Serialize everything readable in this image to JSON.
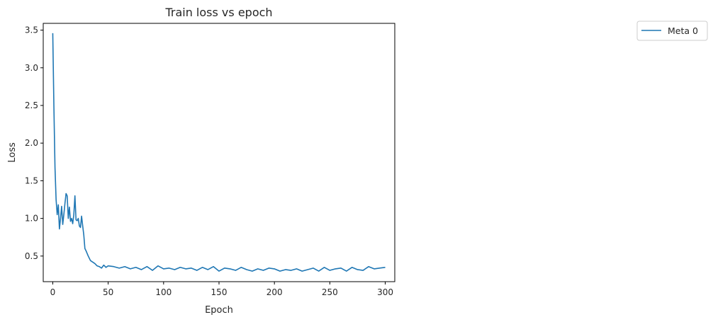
{
  "chart_data": {
    "type": "line",
    "title": "Train loss vs epoch",
    "xlabel": "Epoch",
    "ylabel": "Loss",
    "xlim": [
      -8.6,
      308.6
    ],
    "ylim": [
      0.16,
      3.59
    ],
    "xticks": [
      0,
      50,
      100,
      150,
      200,
      250,
      300
    ],
    "yticks": [
      0.5,
      1.0,
      1.5,
      2.0,
      2.5,
      3.0,
      3.5
    ],
    "xtick_labels": [
      "0",
      "50",
      "100",
      "150",
      "200",
      "250",
      "300"
    ],
    "ytick_labels": [
      "0.5",
      "1.0",
      "1.5",
      "2.0",
      "2.5",
      "3.0",
      "3.5"
    ],
    "grid": false,
    "legend_position": "outside-right-top",
    "series": [
      {
        "name": "Meta 0",
        "color": "#1f77b4",
        "x": [
          0,
          1,
          2,
          3,
          4,
          5,
          6,
          7,
          8,
          9,
          10,
          11,
          12,
          13,
          14,
          15,
          16,
          17,
          18,
          19,
          20,
          21,
          22,
          23,
          24,
          25,
          26,
          27,
          28,
          29,
          30,
          32,
          34,
          36,
          38,
          40,
          42,
          44,
          46,
          48,
          50,
          55,
          60,
          65,
          70,
          75,
          80,
          85,
          90,
          95,
          100,
          105,
          110,
          115,
          120,
          125,
          130,
          135,
          140,
          145,
          150,
          155,
          160,
          165,
          170,
          175,
          180,
          185,
          190,
          195,
          200,
          205,
          210,
          215,
          220,
          225,
          230,
          235,
          240,
          245,
          250,
          255,
          260,
          265,
          270,
          275,
          280,
          285,
          290,
          295,
          300
        ],
        "y": [
          3.46,
          2.5,
          1.68,
          1.25,
          1.05,
          1.18,
          0.86,
          1.0,
          1.16,
          0.92,
          1.05,
          1.2,
          1.33,
          1.3,
          1.0,
          1.15,
          0.96,
          1.0,
          0.93,
          1.05,
          1.3,
          0.98,
          0.97,
          1.0,
          0.9,
          0.88,
          1.03,
          0.9,
          0.78,
          0.6,
          0.57,
          0.5,
          0.44,
          0.42,
          0.4,
          0.37,
          0.36,
          0.34,
          0.38,
          0.35,
          0.37,
          0.36,
          0.34,
          0.36,
          0.33,
          0.35,
          0.32,
          0.36,
          0.31,
          0.37,
          0.33,
          0.34,
          0.32,
          0.35,
          0.33,
          0.34,
          0.31,
          0.35,
          0.32,
          0.36,
          0.3,
          0.34,
          0.33,
          0.31,
          0.35,
          0.32,
          0.3,
          0.33,
          0.31,
          0.34,
          0.33,
          0.3,
          0.32,
          0.31,
          0.33,
          0.3,
          0.32,
          0.34,
          0.3,
          0.35,
          0.31,
          0.33,
          0.34,
          0.3,
          0.35,
          0.32,
          0.31,
          0.36,
          0.33,
          0.34,
          0.35
        ]
      }
    ]
  }
}
